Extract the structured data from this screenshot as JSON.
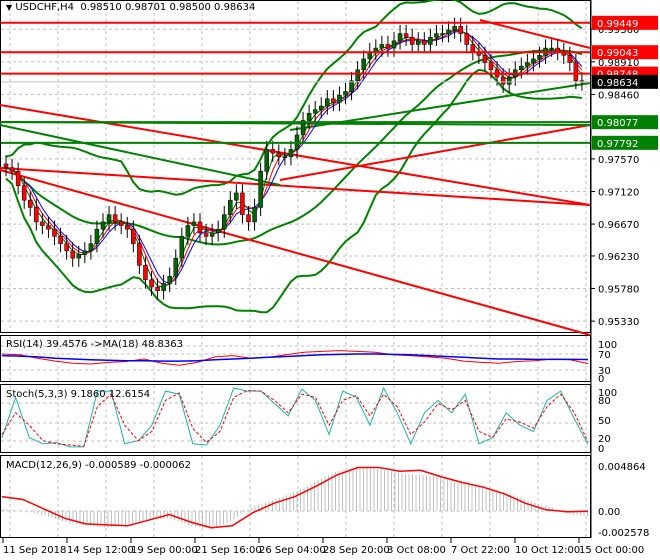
{
  "header": {
    "symbol_label": "USDCHF,H4",
    "open": "0.98510",
    "high": "0.98701",
    "low": "0.98500",
    "close": "0.98634",
    "collapse_icon": "triangle-down-icon"
  },
  "colors": {
    "background": "#ffffff",
    "grid": "#c0c0c0",
    "bull_candle": "#006400",
    "bear_candle": "#ff0000",
    "candle_wick": "#000000",
    "resistance_line": "#ff0000",
    "support_line": "#008000",
    "bollinger": "#008000",
    "ma_fast": "#0000ff",
    "ma_mid": "#ff0000",
    "ma_slow": "#006400",
    "rsi": "#ff0000",
    "rsi_ma": "#0000ff",
    "stoch_main": "#20b2aa",
    "stoch_signal": "#ff0000",
    "macd_hist": "#c0c0c0",
    "macd_signal": "#ff0000",
    "price_tag_current": "#000000"
  },
  "main_pane": {
    "price_axis_ticks": [
      "0.99360",
      "0.98910",
      "0.98460",
      "0.97570",
      "0.97120",
      "0.96670",
      "0.96230",
      "0.95780",
      "0.95330"
    ],
    "price_tags": [
      {
        "value": "0.99449",
        "color": "#ff0000"
      },
      {
        "value": "0.99043",
        "color": "#ff0000"
      },
      {
        "value": "0.98748",
        "color": "#ff0000"
      },
      {
        "value": "0.98634",
        "color": "#000000"
      },
      {
        "value": "0.98077",
        "color": "#008000"
      },
      {
        "value": "0.97792",
        "color": "#008000"
      }
    ]
  },
  "rsi_pane": {
    "label": "RSI(14) 39.4576  ->MA(18) 48.8363",
    "axis_ticks": [
      "100",
      "70",
      "30",
      "0"
    ]
  },
  "stoch_pane": {
    "label": "Stoch(5,3,3) 9.1860 12.6154",
    "axis_ticks": [
      "100",
      "80",
      "50",
      "20",
      "0"
    ]
  },
  "macd_pane": {
    "label": "MACD(12,26,9) -0.000589 -0.000062",
    "axis_ticks": [
      "0.004864",
      "0.00",
      "-0.002578"
    ]
  },
  "time_axis": {
    "labels": [
      "11 Sep 2018",
      "14 Sep 12:00",
      "19 Sep 00:00",
      "21 Sep 16:00",
      "26 Sep 04:00",
      "28 Sep 20:00",
      "3 Oct 08:00",
      "7 Oct 22:00",
      "10 Oct 12:00",
      "15 Oct 00:00"
    ]
  },
  "chart_data": [
    {
      "type": "candlestick",
      "title": "USDCHF,H4 0.98510 0.98701 0.98500 0.98634",
      "xlabel": "",
      "ylabel": "Price",
      "ylim": [
        0.9518,
        0.9975
      ],
      "categories": [
        "11 Sep 2018",
        "14 Sep 12:00",
        "19 Sep 00:00",
        "21 Sep 16:00",
        "26 Sep 04:00",
        "28 Sep 20:00",
        "3 Oct 08:00",
        "7 Oct 22:00",
        "10 Oct 12:00",
        "15 Oct 00:00"
      ],
      "close_series": [
        0.9745,
        0.974,
        0.972,
        0.97,
        0.969,
        0.967,
        0.9665,
        0.966,
        0.965,
        0.964,
        0.963,
        0.962,
        0.9625,
        0.963,
        0.964,
        0.966,
        0.967,
        0.968,
        0.967,
        0.9665,
        0.966,
        0.964,
        0.961,
        0.959,
        0.958,
        0.9575,
        0.9585,
        0.9595,
        0.962,
        0.965,
        0.9665,
        0.967,
        0.9655,
        0.965,
        0.9655,
        0.966,
        0.968,
        0.97,
        0.971,
        0.968,
        0.967,
        0.969,
        0.974,
        0.977,
        0.9765,
        0.976,
        0.976,
        0.977,
        0.979,
        0.981,
        0.982,
        0.9825,
        0.983,
        0.984,
        0.9835,
        0.9845,
        0.985,
        0.9865,
        0.988,
        0.9895,
        0.9905,
        0.991,
        0.9915,
        0.991,
        0.992,
        0.993,
        0.9925,
        0.9915,
        0.992,
        0.9915,
        0.9925,
        0.993,
        0.993,
        0.9935,
        0.994,
        0.993,
        0.9915,
        0.9905,
        0.99,
        0.989,
        0.988,
        0.987,
        0.986,
        0.987,
        0.988,
        0.9885,
        0.989,
        0.9895,
        0.99,
        0.991,
        0.991,
        0.9905,
        0.99,
        0.989,
        0.9865,
        0.9863
      ],
      "horizontal_levels": [
        {
          "value": 0.99449,
          "kind": "resistance"
        },
        {
          "value": 0.99043,
          "kind": "resistance"
        },
        {
          "value": 0.98748,
          "kind": "resistance"
        },
        {
          "value": 0.98077,
          "kind": "support"
        },
        {
          "value": 0.97792,
          "kind": "support"
        }
      ],
      "last_price": 0.98634,
      "overlays": [
        "Bollinger Bands",
        "Moving Averages (blue, red, green)",
        "Trend lines (red, green)"
      ],
      "grid": true
    },
    {
      "type": "line",
      "title": "RSI(14) 39.4576 ->MA(18) 48.8363",
      "ylim": [
        0,
        100
      ],
      "yticks": [
        0,
        30,
        70,
        100
      ],
      "series": [
        {
          "name": "RSI(14)",
          "last": 39.4576,
          "values": [
            62,
            60,
            52,
            45,
            40,
            38,
            42,
            44,
            50,
            40,
            35,
            42,
            55,
            58,
            52,
            54,
            60,
            66,
            68,
            70,
            68,
            66,
            60,
            58,
            55,
            52,
            45,
            42,
            40,
            44,
            46,
            50,
            48,
            39
          ]
        },
        {
          "name": "MA(18)",
          "last": 48.8363,
          "values": [
            58,
            57,
            55,
            52,
            50,
            48,
            47,
            46,
            46,
            45,
            45,
            46,
            48,
            50,
            52,
            54,
            56,
            58,
            60,
            61,
            62,
            62,
            61,
            60,
            58,
            56,
            54,
            52,
            50,
            50,
            49,
            49,
            49,
            48.8
          ]
        }
      ]
    },
    {
      "type": "line",
      "title": "Stoch(5,3,3) 9.1860 12.6154",
      "ylim": [
        0,
        100
      ],
      "yticks": [
        0,
        20,
        50,
        80,
        100
      ],
      "series": [
        {
          "name": "%K",
          "last": 9.186,
          "values": [
            20,
            85,
            20,
            10,
            12,
            5,
            5,
            95,
            95,
            10,
            15,
            40,
            95,
            90,
            10,
            8,
            40,
            100,
            95,
            95,
            75,
            55,
            98,
            80,
            25,
            95,
            85,
            40,
            100,
            60,
            10,
            60,
            80,
            60,
            90,
            10,
            20,
            60,
            40,
            30,
            80,
            95,
            50,
            9
          ]
        },
        {
          "name": "%D",
          "last": 12.6154,
          "values": [
            25,
            60,
            40,
            15,
            10,
            8,
            6,
            70,
            90,
            40,
            15,
            30,
            80,
            92,
            35,
            12,
            30,
            85,
            96,
            95,
            80,
            60,
            90,
            85,
            40,
            80,
            88,
            55,
            90,
            70,
            25,
            45,
            75,
            65,
            80,
            30,
            20,
            50,
            45,
            35,
            70,
            90,
            60,
            13
          ]
        }
      ]
    },
    {
      "type": "bar",
      "title": "MACD(12,26,9) -0.000589 -0.000062",
      "ylim": [
        -0.002578,
        0.004864
      ],
      "yticks": [
        -0.002578,
        0.0,
        0.004864
      ],
      "series": [
        {
          "name": "MACD histogram",
          "last": -0.000589,
          "values": [
            0.0002,
            0.0,
            -0.0005,
            -0.0012,
            -0.0016,
            -0.0018,
            -0.0015,
            -0.001,
            -0.0008,
            -0.0016,
            -0.002,
            -0.001,
            0.0005,
            0.0012,
            0.002,
            0.0032,
            0.0042,
            0.0046,
            0.0044,
            0.004,
            0.0038,
            0.0036,
            0.003,
            0.0025,
            0.002,
            0.0012,
            0.0005,
            -0.0003,
            -0.0006
          ]
        },
        {
          "name": "Signal",
          "last": -6.2e-05,
          "values": [
            0.0015,
            0.0012,
            0.0002,
            -0.0008,
            -0.0014,
            -0.0015,
            -0.0016,
            -0.001,
            -0.0004,
            -0.0012,
            -0.0018,
            -0.0016,
            -0.0002,
            0.0008,
            0.0015,
            0.0026,
            0.0038,
            0.0046,
            0.0046,
            0.0042,
            0.0043,
            0.0036,
            0.003,
            0.0025,
            0.0018,
            0.0008,
            0.0001,
            -0.0001,
            -6e-05
          ]
        }
      ]
    }
  ]
}
